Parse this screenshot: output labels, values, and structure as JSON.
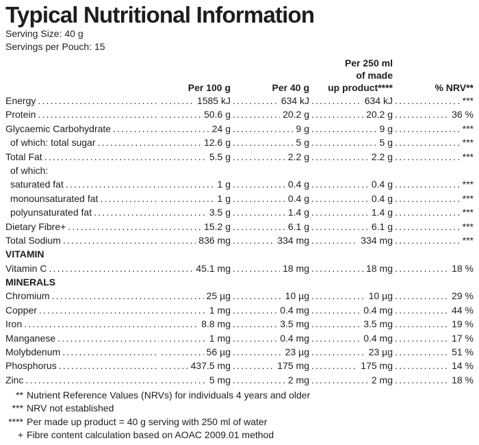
{
  "title": "Typical Nutritional Information",
  "serving": {
    "size": "Serving Size: 40 g",
    "per_pouch": "Servings per Pouch: 15"
  },
  "columns": {
    "per_100g": "Per 100 g",
    "per_40g": "Per 40 g",
    "per_250ml_line1": "Per 250 ml",
    "per_250ml_line2": "of made",
    "per_250ml_line3": "up product****",
    "nrv": "% NRV**"
  },
  "rows": [
    {
      "type": "item",
      "label": "Energy",
      "per100": "1585 kJ",
      "per40": "634 kJ",
      "per250": "634 kJ",
      "nrv": "***"
    },
    {
      "type": "item",
      "label": "Protein",
      "per100": "50.6 g",
      "per40": "20.2 g",
      "per250": "20.2 g",
      "nrv": "36 %"
    },
    {
      "type": "item",
      "label": "Glycaemic Carbohydrate",
      "per100": "24 g",
      "per40": "9 g",
      "per250": "9 g",
      "nrv": "***"
    },
    {
      "type": "item",
      "indent": true,
      "label": "of which: total sugar",
      "per100": "12.6 g",
      "per40": "5 g",
      "per250": "5 g",
      "nrv": "***"
    },
    {
      "type": "item",
      "label": "Total Fat",
      "per100": "5.5 g",
      "per40": "2.2 g",
      "per250": "2.2 g",
      "nrv": "***"
    },
    {
      "type": "label",
      "indent": true,
      "label": "of which:"
    },
    {
      "type": "item",
      "indent": true,
      "label": "saturated fat",
      "per100": "1 g",
      "per40": "0.4 g",
      "per250": "0.4 g",
      "nrv": "***"
    },
    {
      "type": "item",
      "indent": true,
      "label": "monounsaturated fat",
      "per100": "1 g",
      "per40": "0.4 g",
      "per250": "0.4 g",
      "nrv": "***"
    },
    {
      "type": "item",
      "indent": true,
      "label": "polyunsaturated fat",
      "per100": "3.5 g",
      "per40": "1.4 g",
      "per250": "1.4 g",
      "nrv": "***"
    },
    {
      "type": "item",
      "label": "Dietary Fibre+",
      "per100": "15.2 g",
      "per40": "6.1 g",
      "per250": "6.1 g",
      "nrv": "***"
    },
    {
      "type": "item",
      "label": "Total Sodium",
      "per100": "836 mg",
      "per40": "334 mg",
      "per250": "334 mg",
      "nrv": "***"
    },
    {
      "type": "section",
      "label": "VITAMIN"
    },
    {
      "type": "item",
      "label": "Vitamin C",
      "per100": "45.1 mg",
      "per40": "18 mg",
      "per250": "18 mg",
      "nrv": "18 %"
    },
    {
      "type": "section",
      "label": "MINERALS"
    },
    {
      "type": "item",
      "label": "Chromium",
      "per100": "25 µg",
      "per40": "10 µg",
      "per250": "10 µg",
      "nrv": "29 %"
    },
    {
      "type": "item",
      "label": "Copper",
      "per100": "1 mg",
      "per40": "0.4 mg",
      "per250": "0.4 mg",
      "nrv": "44 %"
    },
    {
      "type": "item",
      "label": "Iron",
      "per100": "8.8 mg",
      "per40": "3.5 mg",
      "per250": "3.5 mg",
      "nrv": "19 %"
    },
    {
      "type": "item",
      "label": "Manganese",
      "per100": "1 mg",
      "per40": "0.4 mg",
      "per250": "0.4 mg",
      "nrv": "17 %"
    },
    {
      "type": "item",
      "label": "Molybdenum",
      "per100": "56 µg",
      "per40": "23 µg",
      "per250": "23 µg",
      "nrv": "51 %"
    },
    {
      "type": "item",
      "label": "Phosphorus",
      "per100": "437.5 mg",
      "per40": "175 mg",
      "per250": "175 mg",
      "nrv": "14 %"
    },
    {
      "type": "item",
      "label": "Zinc",
      "per100": "5 mg",
      "per40": "2 mg",
      "per250": "2 mg",
      "nrv": "18 %"
    }
  ],
  "footnotes": [
    {
      "marker": "**",
      "text": "Nutrient Reference Values (NRVs) for individuals 4 years and older"
    },
    {
      "marker": "***",
      "text": "NRV not established"
    },
    {
      "marker": "****",
      "text": "Per made up product = 40 g serving with 250 ml of water"
    },
    {
      "marker": "+",
      "text": "Fibre content calculation based on AOAC 2009.01 method"
    }
  ]
}
